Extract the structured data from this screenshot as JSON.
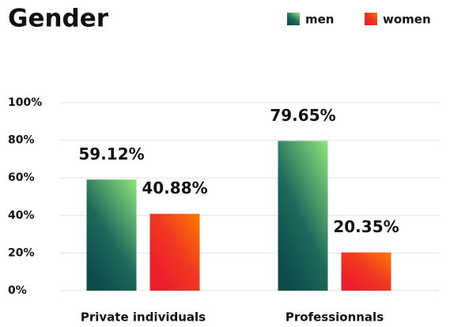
{
  "chart_data": {
    "type": "bar",
    "title": "Gender",
    "categories": [
      "Private individuals",
      "Professionnals"
    ],
    "series": [
      {
        "name": "men",
        "color": "#0d4b49",
        "values": [
          59.12,
          79.65
        ],
        "value_labels": [
          "59.12%",
          "79.65%"
        ]
      },
      {
        "name": "women",
        "color": "#ee1f2c",
        "values": [
          40.88,
          20.35
        ],
        "value_labels": [
          "40.88%",
          "20.35%"
        ]
      }
    ],
    "ylim": [
      0,
      100
    ],
    "yticks": [
      {
        "value": 0,
        "label": "0%"
      },
      {
        "value": 20,
        "label": "20%"
      },
      {
        "value": 40,
        "label": "40%"
      },
      {
        "value": 60,
        "label": "60%"
      },
      {
        "value": 80,
        "label": "80%"
      },
      {
        "value": 100,
        "label": "100%"
      }
    ],
    "grid": true,
    "legend": "top-right"
  }
}
